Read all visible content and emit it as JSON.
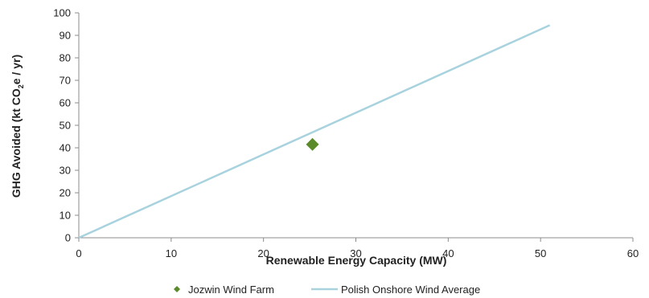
{
  "chart_data": {
    "type": "scatter",
    "xlabel": "Renewable Energy Capacity (MW)",
    "ylabel_parts": [
      "GHG Avoided (kt CO",
      "2",
      "e / yr)"
    ],
    "xlim": [
      0,
      60
    ],
    "ylim": [
      0,
      100
    ],
    "x_ticks": [
      "0",
      "10",
      "20",
      "30",
      "40",
      "50",
      "60"
    ],
    "y_ticks": [
      "0",
      "10",
      "20",
      "30",
      "40",
      "50",
      "60",
      "70",
      "80",
      "90",
      "100"
    ],
    "grid": false,
    "legend_position": "bottom",
    "series": [
      {
        "name": "Jozwin Wind Farm",
        "kind": "marker",
        "marker": "diamond",
        "color": "#5b8a2b",
        "points": [
          {
            "x": 25.3,
            "y": 41.5
          }
        ]
      },
      {
        "name": "Polish Onshore Wind Average",
        "kind": "line",
        "color": "#a8d3de",
        "points": [
          {
            "x": 0,
            "y": 0
          },
          {
            "x": 51,
            "y": 94.5
          }
        ]
      }
    ]
  }
}
